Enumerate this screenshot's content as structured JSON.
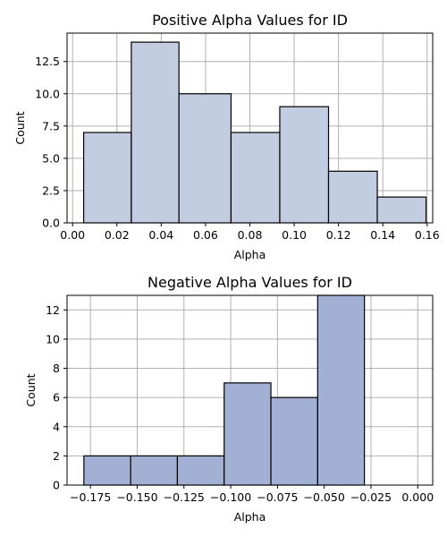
{
  "chart_data": [
    {
      "type": "bar",
      "title": "Positive Alpha Values for ID",
      "xlabel": "Alpha",
      "ylabel": "Count",
      "bar_color": "#c3cde1",
      "xlim": [
        -0.0025,
        0.1625
      ],
      "ylim": [
        0,
        14.7
      ],
      "xticks": [
        0.0,
        0.02,
        0.04,
        0.06,
        0.08,
        0.1,
        0.12,
        0.14,
        0.16
      ],
      "xtick_labels": [
        "0.00",
        "0.02",
        "0.04",
        "0.06",
        "0.08",
        "0.10",
        "0.12",
        "0.14",
        "0.16"
      ],
      "yticks": [
        0.0,
        2.5,
        5.0,
        7.5,
        10.0,
        12.5
      ],
      "ytick_labels": [
        "0.0",
        "2.5",
        "5.0",
        "7.5",
        "10.0",
        "12.5"
      ],
      "grid": true,
      "bins": [
        {
          "x0": 0.005,
          "x1": 0.0265,
          "value": 7
        },
        {
          "x0": 0.0265,
          "x1": 0.048,
          "value": 14
        },
        {
          "x0": 0.048,
          "x1": 0.0715,
          "value": 10
        },
        {
          "x0": 0.0715,
          "x1": 0.0935,
          "value": 7
        },
        {
          "x0": 0.0935,
          "x1": 0.1155,
          "value": 9
        },
        {
          "x0": 0.1155,
          "x1": 0.1375,
          "value": 4
        },
        {
          "x0": 0.1375,
          "x1": 0.1595,
          "value": 2
        }
      ]
    },
    {
      "type": "bar",
      "title": "Negative Alpha Values for ID",
      "xlabel": "Alpha",
      "ylabel": "Count",
      "bar_color": "#a2b0d4",
      "xlim": [
        -0.1875,
        0.008
      ],
      "ylim": [
        0,
        13.0
      ],
      "xticks": [
        -0.175,
        -0.15,
        -0.125,
        -0.1,
        -0.075,
        -0.05,
        -0.025,
        0.0
      ],
      "xtick_labels": [
        "−0.175",
        "−0.150",
        "−0.125",
        "−0.100",
        "−0.075",
        "−0.050",
        "−0.025",
        "0.000"
      ],
      "yticks": [
        0,
        2,
        4,
        6,
        8,
        10,
        12
      ],
      "ytick_labels": [
        "0",
        "2",
        "4",
        "6",
        "8",
        "10",
        "12"
      ],
      "grid": true,
      "bins": [
        {
          "x0": -0.1785,
          "x1": -0.1535,
          "value": 2
        },
        {
          "x0": -0.1535,
          "x1": -0.1285,
          "value": 2
        },
        {
          "x0": -0.1285,
          "x1": -0.1035,
          "value": 2
        },
        {
          "x0": -0.1035,
          "x1": -0.0785,
          "value": 7
        },
        {
          "x0": -0.0785,
          "x1": -0.0535,
          "value": 6
        },
        {
          "x0": -0.0535,
          "x1": -0.0285,
          "value": 13
        }
      ]
    }
  ]
}
